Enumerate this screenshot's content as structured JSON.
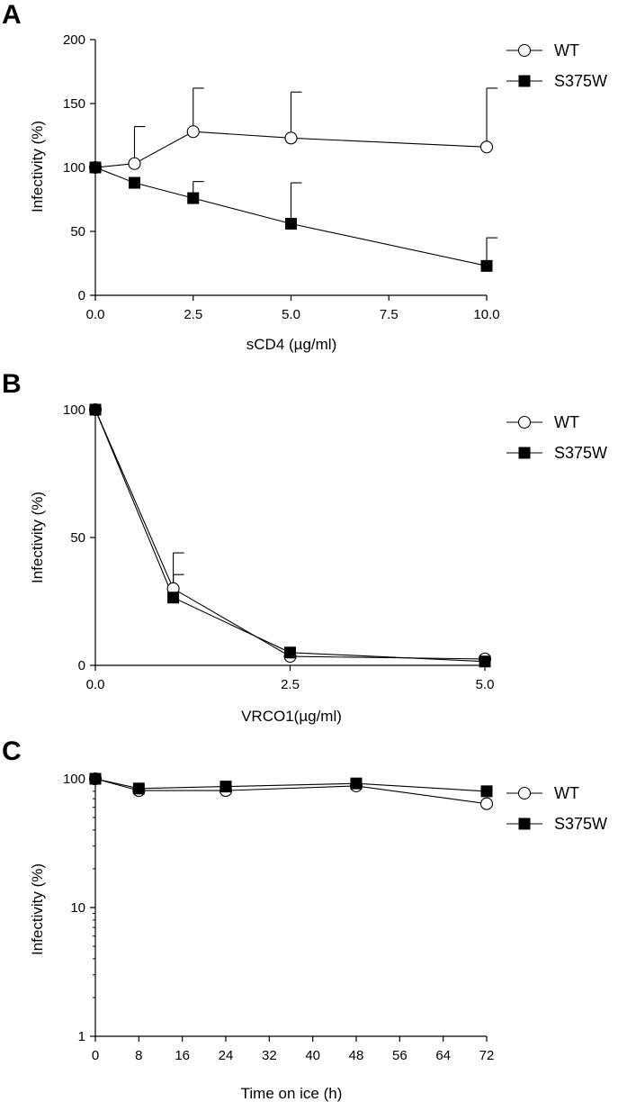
{
  "figure": {
    "background": "#ffffff",
    "ink": "#000000"
  },
  "chart_data": [
    {
      "panel": "A",
      "type": "line",
      "scale": "linear",
      "xlabel": "sCD4 (µg/ml)",
      "ylabel": "Infectivity (%)",
      "xlim": [
        0,
        10
      ],
      "ylim": [
        0,
        200
      ],
      "xticks": [
        0,
        2.5,
        5,
        7.5,
        10
      ],
      "xtick_labels": [
        "0.0",
        "2.5",
        "5.0",
        "7.5",
        "10.0"
      ],
      "yticks": [
        0,
        50,
        100,
        150,
        200
      ],
      "ytick_labels": [
        "0",
        "50",
        "100",
        "150",
        "200"
      ],
      "legend": [
        "WT",
        "S375W"
      ],
      "series": [
        {
          "name": "WT",
          "marker": "open-circle",
          "x": [
            0,
            1,
            2.5,
            5,
            10
          ],
          "y": [
            100,
            103,
            128,
            123,
            116
          ],
          "err": [
            0,
            29,
            34,
            36,
            46
          ]
        },
        {
          "name": "S375W",
          "marker": "filled-square",
          "x": [
            0,
            1,
            2.5,
            5,
            10
          ],
          "y": [
            100,
            88,
            76,
            56,
            23
          ],
          "err": [
            0,
            0,
            13,
            32,
            22
          ]
        }
      ]
    },
    {
      "panel": "B",
      "type": "line",
      "scale": "linear",
      "xlabel": "VRCO1(µg/ml)",
      "ylabel": "Infectivity (%)",
      "xlim": [
        0,
        5
      ],
      "ylim": [
        0,
        100
      ],
      "xticks": [
        0,
        2.5,
        5
      ],
      "xtick_labels": [
        "0.0",
        "2.5",
        "5.0"
      ],
      "yticks": [
        0,
        50,
        100
      ],
      "ytick_labels": [
        "0",
        "50",
        "100"
      ],
      "legend": [
        "WT",
        "S375W"
      ],
      "series": [
        {
          "name": "WT",
          "marker": "open-circle",
          "x": [
            0,
            1,
            2.5,
            5
          ],
          "y": [
            100,
            30,
            3.5,
            2.5
          ],
          "err": [
            0,
            14,
            0,
            0
          ]
        },
        {
          "name": "S375W",
          "marker": "filled-square",
          "x": [
            0,
            1,
            2.5,
            5
          ],
          "y": [
            100,
            26.5,
            5,
            1.5
          ],
          "err": [
            0,
            9,
            0,
            0
          ]
        }
      ]
    },
    {
      "panel": "C",
      "type": "line",
      "scale": "log",
      "xlabel": "Time on ice (h)",
      "ylabel": "Infectivity (%)",
      "xlim": [
        0,
        72
      ],
      "ylim": [
        1,
        100
      ],
      "xticks": [
        0,
        8,
        16,
        24,
        32,
        40,
        48,
        56,
        64,
        72
      ],
      "xtick_labels": [
        "0",
        "8",
        "16",
        "24",
        "32",
        "40",
        "48",
        "56",
        "64",
        "72"
      ],
      "yticks": [
        1,
        10,
        100
      ],
      "ytick_labels": [
        "1",
        "10",
        "100"
      ],
      "legend": [
        "WT",
        "S375W"
      ],
      "series": [
        {
          "name": "WT",
          "marker": "open-circle",
          "x": [
            0,
            8,
            24,
            48,
            72
          ],
          "y": [
            100,
            81,
            81,
            88,
            64
          ]
        },
        {
          "name": "S375W",
          "marker": "filled-square",
          "x": [
            0,
            8,
            24,
            48,
            72
          ],
          "y": [
            100,
            84,
            87,
            92,
            80
          ]
        }
      ]
    }
  ]
}
